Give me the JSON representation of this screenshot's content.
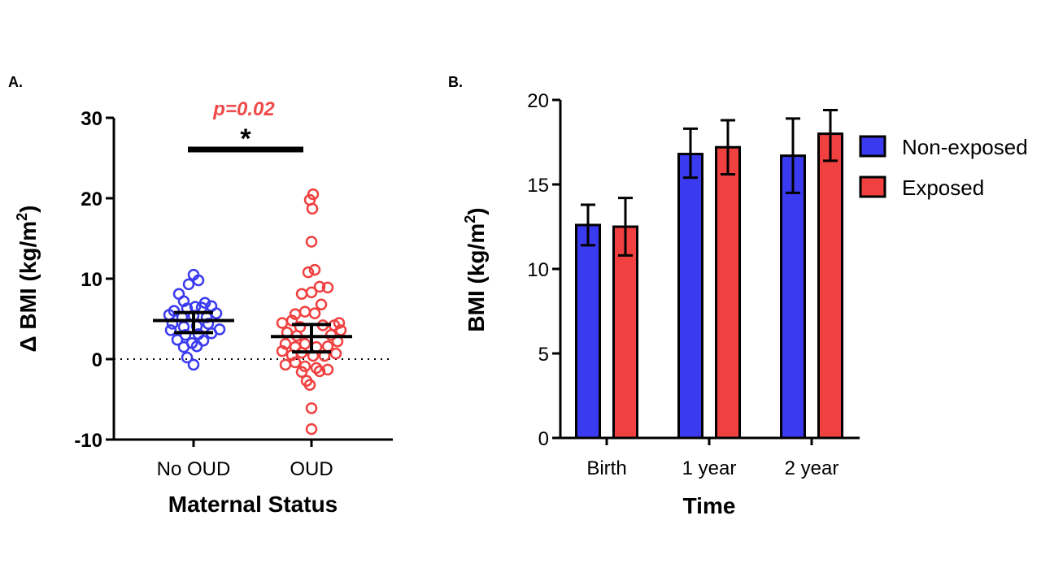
{
  "panel_a": {
    "label": "A.",
    "xlabel": "Maternal Status",
    "ylabel": "Δ BMI (kg/m",
    "ylabel_sup": "2",
    "ylabel_close": ")",
    "p_value": "p=0.02",
    "star": "*"
  },
  "panel_b": {
    "label": "B.",
    "xlabel": "Time",
    "ylabel": "BMI (kg/m",
    "ylabel_sup": "2",
    "ylabel_close": ")",
    "legend": [
      "Non-exposed",
      "Exposed"
    ]
  },
  "colors": {
    "non_exposed": "#3a3af0",
    "exposed": "#f04040",
    "p_value": "#f04a4a",
    "axis": "#000000"
  },
  "chart_data": [
    {
      "type": "scatter",
      "panel": "A.",
      "title": "",
      "xlabel": "Maternal Status",
      "ylabel": "Δ BMI (kg/m²)",
      "categories": [
        "No OUD",
        "OUD"
      ],
      "ylim": [
        -10,
        30
      ],
      "yticks": [
        -10,
        0,
        10,
        20,
        30
      ],
      "reference_line": 0,
      "annotation": {
        "text": "p=0.02",
        "star": "*"
      },
      "groups": [
        {
          "name": "No OUD",
          "color": "#3a3af0",
          "mean": 4.8,
          "error_low": 3.3,
          "error_high": 5.8,
          "points": [
            {
              "x": 0.0,
              "y": 10.5
            },
            {
              "x": -0.18,
              "y": 8.1
            },
            {
              "x": -0.06,
              "y": 9.3
            },
            {
              "x": 0.06,
              "y": 9.8
            },
            {
              "x": -0.12,
              "y": 7.2
            },
            {
              "x": 0.14,
              "y": 7.0
            },
            {
              "x": -0.24,
              "y": 6.0
            },
            {
              "x": -0.08,
              "y": 6.3
            },
            {
              "x": 0.02,
              "y": 6.5
            },
            {
              "x": 0.1,
              "y": 6.4
            },
            {
              "x": 0.22,
              "y": 6.6
            },
            {
              "x": -0.3,
              "y": 5.5
            },
            {
              "x": -0.14,
              "y": 5.2
            },
            {
              "x": 0.0,
              "y": 5.4
            },
            {
              "x": 0.16,
              "y": 5.2
            },
            {
              "x": 0.28,
              "y": 5.7
            },
            {
              "x": -0.26,
              "y": 4.4
            },
            {
              "x": -0.12,
              "y": 4.0
            },
            {
              "x": 0.04,
              "y": 4.1
            },
            {
              "x": 0.18,
              "y": 4.4
            },
            {
              "x": -0.28,
              "y": 3.6
            },
            {
              "x": -0.1,
              "y": 3.0
            },
            {
              "x": 0.06,
              "y": 3.1
            },
            {
              "x": 0.22,
              "y": 3.2
            },
            {
              "x": 0.32,
              "y": 3.7
            },
            {
              "x": -0.2,
              "y": 2.4
            },
            {
              "x": -0.02,
              "y": 2.0
            },
            {
              "x": 0.12,
              "y": 2.3
            },
            {
              "x": -0.12,
              "y": 1.5
            },
            {
              "x": 0.04,
              "y": 1.6
            },
            {
              "x": -0.08,
              "y": 0.2
            },
            {
              "x": 0.0,
              "y": -0.7
            }
          ]
        },
        {
          "name": "OUD",
          "color": "#f04040",
          "mean": 2.8,
          "error_low": 0.9,
          "error_high": 4.3,
          "points": [
            {
              "x": 0.02,
              "y": 20.5
            },
            {
              "x": -0.02,
              "y": 19.8
            },
            {
              "x": 0.01,
              "y": 18.7
            },
            {
              "x": 0.0,
              "y": 14.6
            },
            {
              "x": 0.04,
              "y": 11.1
            },
            {
              "x": -0.04,
              "y": 10.8
            },
            {
              "x": 0.1,
              "y": 9.0
            },
            {
              "x": 0.2,
              "y": 8.9
            },
            {
              "x": 0.0,
              "y": 8.3
            },
            {
              "x": -0.12,
              "y": 8.1
            },
            {
              "x": 0.12,
              "y": 6.8
            },
            {
              "x": -0.2,
              "y": 5.6
            },
            {
              "x": -0.08,
              "y": 5.9
            },
            {
              "x": 0.04,
              "y": 5.7
            },
            {
              "x": -0.36,
              "y": 4.5
            },
            {
              "x": -0.24,
              "y": 4.8
            },
            {
              "x": -0.14,
              "y": 4.0
            },
            {
              "x": 0.14,
              "y": 4.2
            },
            {
              "x": 0.28,
              "y": 4.2
            },
            {
              "x": 0.34,
              "y": 4.5
            },
            {
              "x": -0.3,
              "y": 3.3
            },
            {
              "x": -0.18,
              "y": 2.9
            },
            {
              "x": 0.24,
              "y": 3.0
            },
            {
              "x": 0.36,
              "y": 3.6
            },
            {
              "x": -0.32,
              "y": 1.9
            },
            {
              "x": -0.2,
              "y": 1.5
            },
            {
              "x": -0.08,
              "y": 1.9
            },
            {
              "x": 0.06,
              "y": 1.5
            },
            {
              "x": 0.2,
              "y": 1.6
            },
            {
              "x": 0.32,
              "y": 2.2
            },
            {
              "x": -0.36,
              "y": 1.0
            },
            {
              "x": -0.24,
              "y": 0.5
            },
            {
              "x": -0.12,
              "y": 0.8
            },
            {
              "x": 0.02,
              "y": 0.4
            },
            {
              "x": 0.16,
              "y": 0.4
            },
            {
              "x": 0.3,
              "y": 0.7
            },
            {
              "x": -0.32,
              "y": -0.7
            },
            {
              "x": -0.2,
              "y": -0.4
            },
            {
              "x": -0.08,
              "y": -0.9
            },
            {
              "x": 0.06,
              "y": -1.1
            },
            {
              "x": 0.2,
              "y": -1.3
            },
            {
              "x": -0.12,
              "y": -1.6
            },
            {
              "x": 0.1,
              "y": -1.5
            },
            {
              "x": -0.06,
              "y": -2.7
            },
            {
              "x": -0.02,
              "y": -3.2
            },
            {
              "x": 0.0,
              "y": -6.1
            },
            {
              "x": 0.0,
              "y": -8.7
            }
          ]
        }
      ]
    },
    {
      "type": "bar",
      "panel": "B.",
      "title": "",
      "xlabel": "Time",
      "ylabel": "BMI (kg/m²)",
      "categories": [
        "Birth",
        "1 year",
        "2 year"
      ],
      "ylim": [
        0,
        20
      ],
      "yticks": [
        0,
        5,
        10,
        15,
        20
      ],
      "legend_position": "right",
      "series": [
        {
          "name": "Non-exposed",
          "color": "#3a3af0",
          "values": [
            12.6,
            16.8,
            16.7
          ],
          "error_low": [
            11.4,
            15.4,
            14.5
          ],
          "error_high": [
            13.8,
            18.3,
            18.9
          ]
        },
        {
          "name": "Exposed",
          "color": "#f04040",
          "values": [
            12.5,
            17.2,
            18.0
          ],
          "error_low": [
            10.8,
            15.6,
            16.4
          ],
          "error_high": [
            14.2,
            18.8,
            19.4
          ]
        }
      ]
    }
  ]
}
